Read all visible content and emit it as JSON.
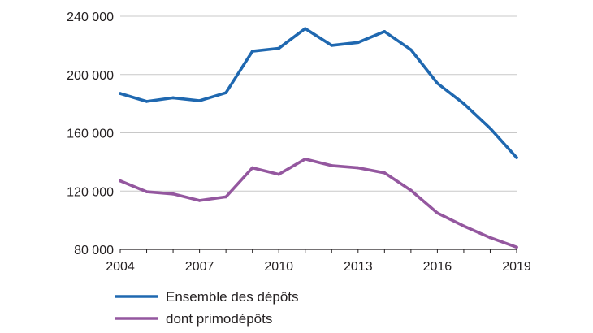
{
  "chart_data": {
    "type": "line",
    "title": "",
    "xlabel": "",
    "ylabel": "",
    "x": [
      2004,
      2005,
      2006,
      2007,
      2008,
      2009,
      2010,
      2011,
      2012,
      2013,
      2014,
      2015,
      2016,
      2017,
      2018,
      2019
    ],
    "xlim": [
      2004,
      2019
    ],
    "ylim": [
      80000,
      240000
    ],
    "grid": "horizontal",
    "legend": "bottom-left",
    "x_ticks": [
      {
        "value": 2004,
        "label": "2004"
      },
      {
        "value": 2007,
        "label": "2007"
      },
      {
        "value": 2010,
        "label": "2010"
      },
      {
        "value": 2013,
        "label": "2013"
      },
      {
        "value": 2016,
        "label": "2016"
      },
      {
        "value": 2019,
        "label": "2019"
      }
    ],
    "y_ticks": [
      {
        "value": 80000,
        "label": "80 000"
      },
      {
        "value": 120000,
        "label": "120 000"
      },
      {
        "value": 160000,
        "label": "160 000"
      },
      {
        "value": 200000,
        "label": "200 000"
      },
      {
        "value": 240000,
        "label": "240 000"
      }
    ],
    "series": [
      {
        "name": "Ensemble des dépôts",
        "color": "#1f68b0",
        "values": [
          187000,
          181500,
          184000,
          182000,
          187500,
          216000,
          218000,
          231500,
          220000,
          222000,
          229500,
          217000,
          194000,
          180000,
          163000,
          143000
        ]
      },
      {
        "name": "dont primodépôts",
        "color": "#94579f",
        "values": [
          127000,
          119500,
          118000,
          113500,
          116000,
          136000,
          131500,
          142000,
          137500,
          136000,
          132500,
          120500,
          105000,
          96000,
          88000,
          81500
        ]
      }
    ]
  }
}
